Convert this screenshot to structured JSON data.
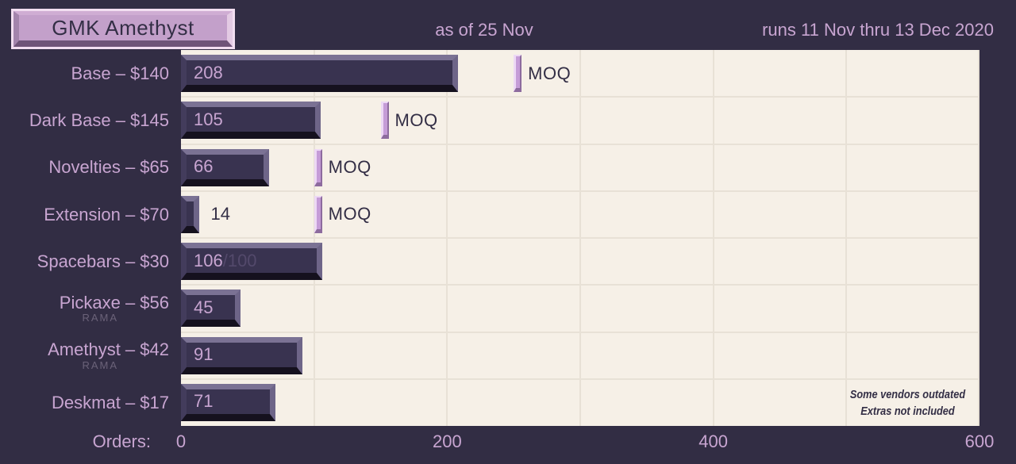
{
  "title": "GMK Amethyst",
  "header": {
    "as_of": "as of 25 Nov",
    "runs": "runs 11 Nov thru 13 Dec 2020"
  },
  "axis": {
    "label": "Orders:"
  },
  "moq_label": "MOQ",
  "footnote": {
    "line1": "Some vendors outdated",
    "line2": "Extras not included"
  },
  "colors": {
    "background": "#322d44",
    "plot_background": "#f6f0e7",
    "gridline": "#e8e1d6",
    "bar_body": "#393350",
    "bar_bevel_top": "#7b7294",
    "bar_bevel_bottom": "#15111e",
    "bar_bevel_left": "#433c5c",
    "bar_bevel_right": "#6e6588",
    "moq_body": "#c59cd7",
    "moq_highlight": "#edd8f5",
    "moq_shadow": "#8d6b9e",
    "label_text": "#c8a5d1",
    "dark_text": "#332e45",
    "dim_suffix": "#53496b",
    "sub_label": "#6b6279",
    "title_keycap_face": "#c3a0ca",
    "title_keycap_frame": "#f2def1"
  },
  "chart_data": {
    "type": "bar",
    "orientation": "horizontal",
    "title": "GMK Amethyst",
    "xlabel": "Orders",
    "xlim": [
      0,
      600
    ],
    "x_ticks": [
      0,
      200,
      400,
      600
    ],
    "gridline_every": 100,
    "legend": "none",
    "rows": [
      {
        "label": "Base – $140",
        "value": 208,
        "display": "208",
        "moq": 250
      },
      {
        "label": "Dark Base – $145",
        "value": 105,
        "display": "105",
        "moq": 150
      },
      {
        "label": "Novelties – $65",
        "value": 66,
        "display": "66",
        "moq": 100
      },
      {
        "label": "Extension – $70",
        "value": 14,
        "display": "14",
        "moq": 100,
        "value_outside": true
      },
      {
        "label": "Spacebars – $30",
        "value": 106,
        "display": "106",
        "goal_suffix": "/100"
      },
      {
        "label": "Pickaxe – $56",
        "value": 45,
        "display": "45",
        "sub": "RAMA"
      },
      {
        "label": "Amethyst – $42",
        "value": 91,
        "display": "91",
        "sub": "RAMA"
      },
      {
        "label": "Deskmat – $17",
        "value": 71,
        "display": "71"
      }
    ]
  }
}
